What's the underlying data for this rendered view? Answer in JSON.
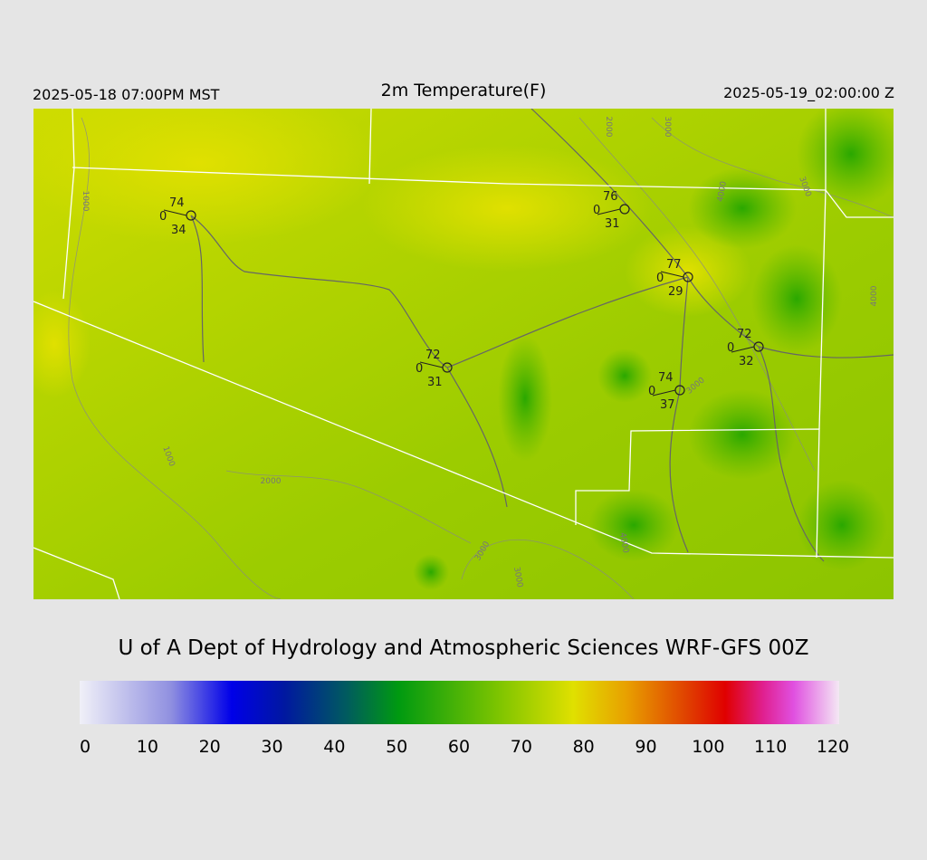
{
  "header": {
    "valid_local": "2025-05-18 07:00PM MST",
    "title": "2m Temperature(F)",
    "valid_utc": "2025-05-19_02:00:00 Z"
  },
  "stations": [
    {
      "temperature": "74",
      "wind": "0",
      "dewpoint": "34"
    },
    {
      "temperature": "76",
      "wind": "0",
      "dewpoint": "31"
    },
    {
      "temperature": "77",
      "wind": "0",
      "dewpoint": "29"
    },
    {
      "temperature": "72",
      "wind": "0",
      "dewpoint": "32"
    },
    {
      "temperature": "72",
      "wind": "0",
      "dewpoint": "31"
    },
    {
      "temperature": "74",
      "wind": "0",
      "dewpoint": "37"
    }
  ],
  "contour_labels": [
    "1000",
    "1000",
    "2000",
    "2000",
    "3000",
    "3000",
    "3000",
    "3000",
    "3000",
    "4000",
    "4000",
    "4000"
  ],
  "credit": "U of A Dept of Hydrology and Atmospheric Sciences WRF-GFS 00Z",
  "colorbar": {
    "ticks": [
      0,
      10,
      20,
      30,
      40,
      50,
      60,
      70,
      80,
      90,
      100,
      110,
      120
    ]
  }
}
